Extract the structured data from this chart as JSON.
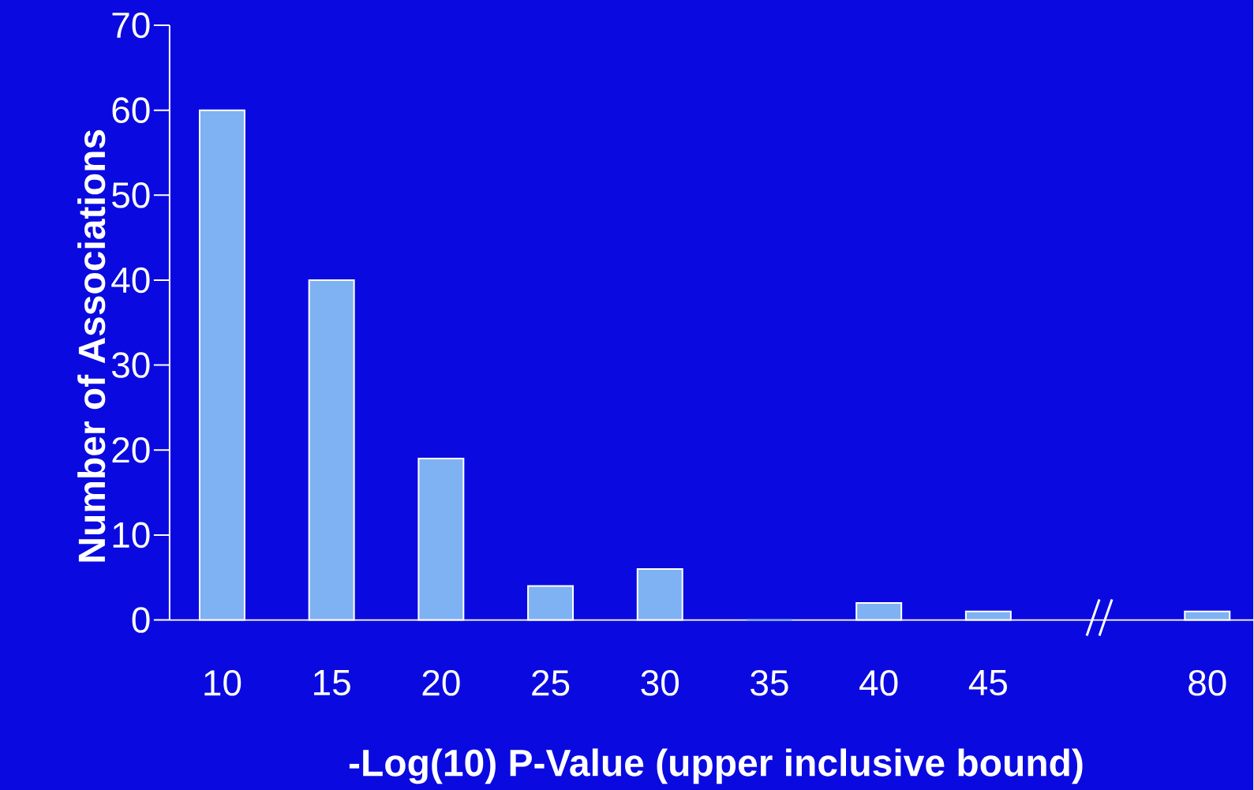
{
  "chart_data": {
    "type": "bar",
    "xlabel": "-Log(10) P-Value (upper inclusive bound)",
    "ylabel": "Number of Associations",
    "categories": [
      "10",
      "15",
      "20",
      "25",
      "30",
      "35",
      "40",
      "45",
      null,
      "80"
    ],
    "values": [
      60,
      40,
      19,
      4,
      6,
      0,
      2,
      1,
      null,
      1
    ],
    "color": "#7fb2f2",
    "ylim": [
      0,
      70
    ],
    "yticks": [
      0,
      10,
      20,
      30,
      40,
      50,
      60,
      70
    ],
    "grid": false
  }
}
